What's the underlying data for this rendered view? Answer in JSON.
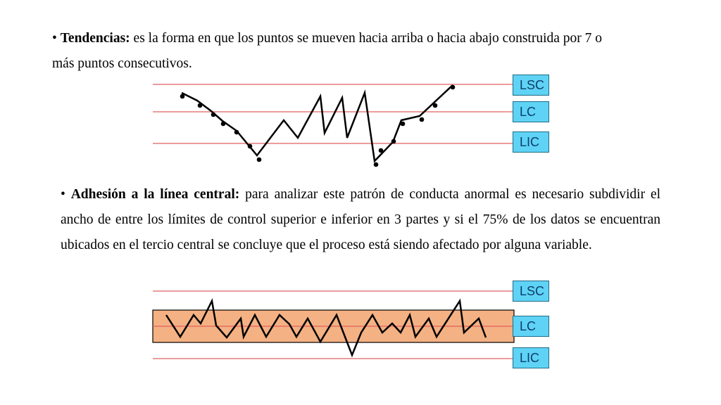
{
  "section1": {
    "bullet": "•",
    "title": "Tendencias:",
    "text": "es la forma en que los puntos se mueven hacia arriba o hacia abajo construida por 7 o más puntos consecutivos."
  },
  "section2": {
    "bullet": "•",
    "title": "Adhesión a la línea central:",
    "text": "para analizar este patrón de conducta anormal es necesario subdividir el ancho de entre los límites de control superior e inferior en 3 partes y si el 75% de los datos se encuentran ubicados en el tercio central se concluye que el proceso está siendo afectado por alguna variable."
  },
  "chart1_labels": {
    "upper": "LSC",
    "center": "LC",
    "lower": "LIC"
  },
  "chart2_labels": {
    "upper": "LSC",
    "center": "LC",
    "lower": "LIC"
  },
  "colors": {
    "limit_line": "#e06060",
    "band_fill": "#f4b183",
    "label_fill": "#5fd3f5"
  }
}
